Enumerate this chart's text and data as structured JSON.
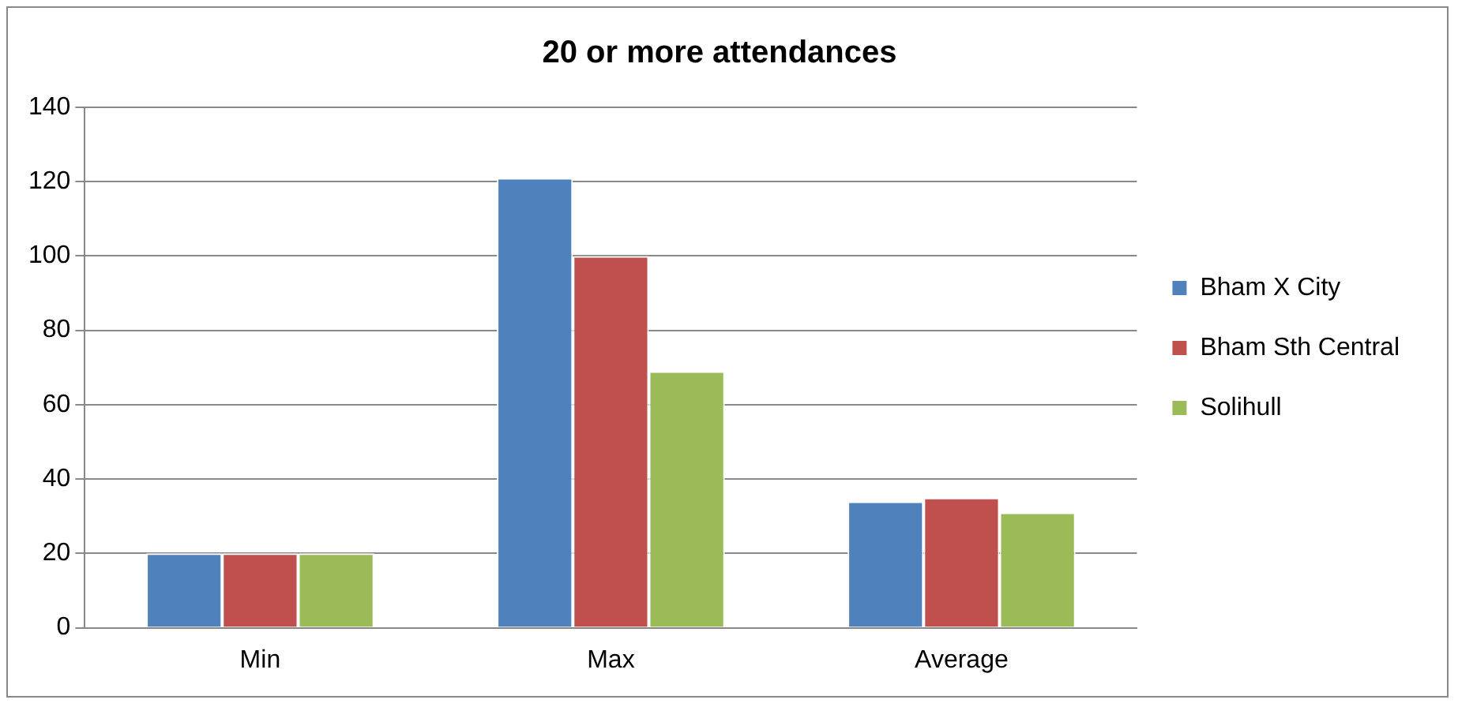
{
  "chart_data": {
    "type": "bar",
    "title": "20 or more attendances",
    "categories": [
      "Min",
      "Max",
      "Average"
    ],
    "series": [
      {
        "name": "Bham X City",
        "color": "#4f81bd",
        "values": [
          20,
          121,
          34
        ]
      },
      {
        "name": "Bham Sth Central",
        "color": "#c0504d",
        "values": [
          20,
          100,
          35
        ]
      },
      {
        "name": "Solihull",
        "color": "#9bbb59",
        "values": [
          20,
          69,
          31
        ]
      }
    ],
    "ylim": [
      0,
      140
    ],
    "yticks": [
      0,
      20,
      40,
      60,
      80,
      100,
      120,
      140
    ],
    "grid": "y",
    "legend": "right"
  }
}
